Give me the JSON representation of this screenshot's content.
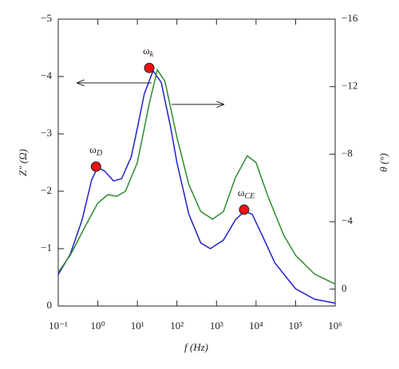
{
  "chart_data": {
    "type": "line",
    "xlabel": "f (Hz)",
    "ylabel": "Z″ (Ω)",
    "y2label": "θ (°)",
    "xscale": "log",
    "xlim": [
      0.1,
      1000000
    ],
    "xticks": [
      {
        "value": 0.1,
        "label": "10⁻¹"
      },
      {
        "value": 1,
        "label": "10⁰"
      },
      {
        "value": 10,
        "label": "10¹"
      },
      {
        "value": 100,
        "label": "10²"
      },
      {
        "value": 1000,
        "label": "10³"
      },
      {
        "value": 10000,
        "label": "10⁴"
      },
      {
        "value": 100000,
        "label": "10⁵"
      },
      {
        "value": 1000000,
        "label": "10⁶"
      }
    ],
    "ylim": [
      0,
      -5
    ],
    "yticks": [
      0,
      {
        "value": -1,
        "label": "−1"
      },
      {
        "value": -2,
        "label": "−2"
      },
      {
        "value": -3,
        "label": "−3"
      },
      {
        "value": -4,
        "label": "−4"
      },
      {
        "value": -5,
        "label": "−5"
      }
    ],
    "y2lim": [
      1,
      -16
    ],
    "y2ticks": [
      0,
      {
        "value": -4,
        "label": "−4"
      },
      {
        "value": -8,
        "label": "−8"
      },
      {
        "value": -12,
        "label": "−12"
      },
      {
        "value": -16,
        "label": "−16"
      }
    ],
    "series": [
      {
        "color": "#2020c8",
        "axis": "y",
        "x": [
          0.1,
          0.2,
          0.4,
          0.7,
          1,
          1.5,
          2.5,
          4,
          7,
          10,
          15,
          25,
          40,
          70,
          100,
          200,
          400,
          700,
          1500,
          3000,
          5000,
          8000,
          15000,
          30000,
          100000,
          300000,
          1000000
        ],
        "values": [
          -0.55,
          -0.9,
          -1.5,
          -2.2,
          -2.42,
          -2.35,
          -2.18,
          -2.22,
          -2.6,
          -3.1,
          -3.7,
          -4.1,
          -3.9,
          -3.1,
          -2.5,
          -1.6,
          -1.1,
          -1.0,
          -1.15,
          -1.5,
          -1.65,
          -1.6,
          -1.2,
          -0.75,
          -0.3,
          -0.12,
          -0.05
        ]
      },
      {
        "color": "#2e8b2e",
        "axis": "y2",
        "x": [
          0.1,
          0.2,
          0.5,
          1,
          1.8,
          3,
          5,
          10,
          20,
          32,
          50,
          100,
          200,
          400,
          800,
          1500,
          3000,
          6000,
          10000,
          20000,
          50000,
          100000,
          300000,
          1000000
        ],
        "values": [
          -1.0,
          -2.0,
          -3.8,
          -5.1,
          -5.6,
          -5.5,
          -5.8,
          -7.5,
          -11.0,
          -13.0,
          -12.3,
          -9.0,
          -6.2,
          -4.6,
          -4.15,
          -4.6,
          -6.6,
          -7.9,
          -7.5,
          -5.5,
          -3.2,
          -2.0,
          -0.9,
          -0.3
        ]
      }
    ],
    "markers": [
      {
        "label": "ω",
        "subscript": "D",
        "x": 0.9,
        "y": -2.43
      },
      {
        "label": "ω",
        "subscript": "k",
        "x": 20,
        "y": -4.15
      },
      {
        "label": "ω",
        "subscript": "CE",
        "x": 5000,
        "y": -1.68
      }
    ],
    "marker_color": "#ee1111"
  }
}
